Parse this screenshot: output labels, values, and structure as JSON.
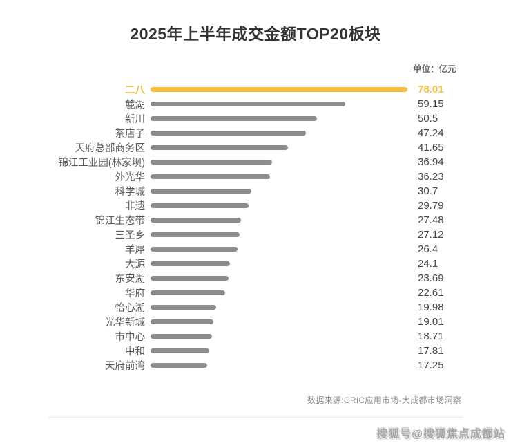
{
  "page": {
    "title": "2025年上半年成交金额TOP20板块",
    "unit_label": "单位：亿元",
    "source": "数据来源:CRIC应用市场-大成都市场洞察",
    "watermark": "搜狐号@搜狐焦点成都站"
  },
  "colors": {
    "highlight": "#f5be41",
    "bar": "#8c8c8c",
    "title_text": "#333333",
    "label_text": "#595959",
    "value_text": "#474747",
    "source_text": "#8a8a8a"
  },
  "chart_data": {
    "type": "bar",
    "orientation": "horizontal",
    "title": "2025年上半年成交金额TOP20板块",
    "unit": "亿元",
    "categories": [
      "二八",
      "麓湖",
      "新川",
      "茶店子",
      "天府总部商务区",
      "锦江工业园(林家坝)",
      "外光华",
      "科学城",
      "非遗",
      "锦江生态带",
      "三圣乡",
      "羊犀",
      "大源",
      "东安湖",
      "华府",
      "怡心湖",
      "光华新城",
      "市中心",
      "中和",
      "天府前湾"
    ],
    "values": [
      78.01,
      59.15,
      50.5,
      47.24,
      41.65,
      36.94,
      36.23,
      30.7,
      29.79,
      27.48,
      27.12,
      26.4,
      24.1,
      23.69,
      22.61,
      19.98,
      19.01,
      18.71,
      17.81,
      17.25
    ],
    "xlim": [
      0,
      78.01
    ],
    "highlight_index": 0,
    "grid": false,
    "legend": false,
    "value_labels": "right"
  }
}
